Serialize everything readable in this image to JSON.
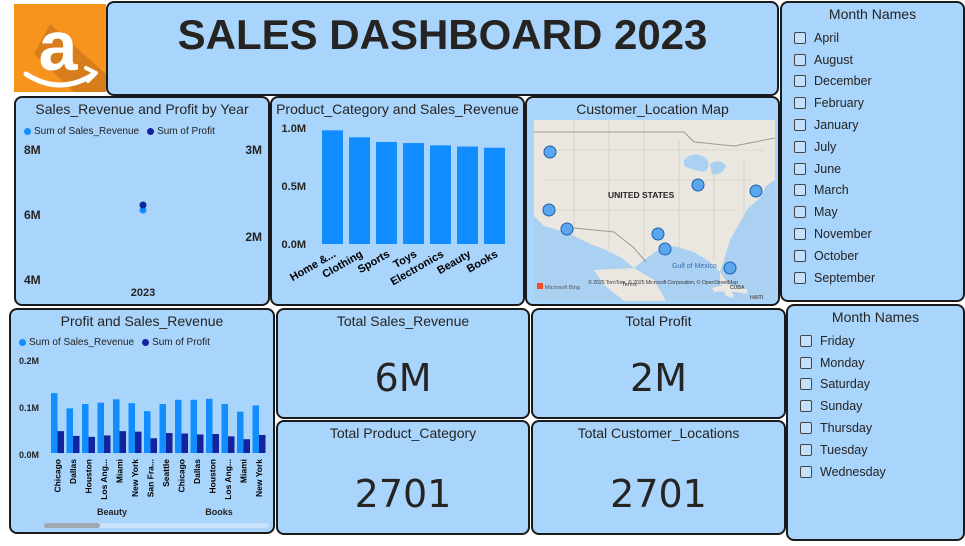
{
  "header": {
    "title": "SALES DASHBOARD 2023",
    "logo_icon": "amazon-logo-icon"
  },
  "colors": {
    "panel_bg": "#a9d4fb",
    "sales_revenue": "#118dff",
    "profit": "#12239e",
    "logo_bg": "#f7941d"
  },
  "year_chart": {
    "title": "Sales_Revenue and Profit by Year",
    "legend": [
      "Sum of Sales_Revenue",
      "Sum of Profit"
    ],
    "left_ticks": [
      "8M",
      "6M",
      "4M"
    ],
    "right_ticks": [
      "3M",
      "2M"
    ],
    "x_label": "2023"
  },
  "category_chart": {
    "title": "Product_Category and Sales_Revenue",
    "y_ticks": [
      "1.0M",
      "0.5M",
      "0.0M"
    ]
  },
  "map": {
    "title": "Customer_Location Map",
    "label_country": "UNITED STATES",
    "label_gulf": "Gulf of Mexico",
    "label_cuba": "CUBA",
    "label_haiti": "HAITI",
    "brand": "Microsoft Bing",
    "copyright": "© 2025 TomTom, © 2025 Microsoft Corporation, © OpenStreetMap",
    "terms": "Terms"
  },
  "city_chart": {
    "title": "Profit and Sales_Revenue",
    "legend": [
      "Sum of Sales_Revenue",
      "Sum of Profit"
    ],
    "y_ticks": [
      "0.2M",
      "0.1M",
      "0.0M"
    ],
    "groups": [
      "Beauty",
      "Books"
    ]
  },
  "kpis": {
    "sales_title": "Total Sales_Revenue",
    "sales_value": "6M",
    "profit_title": "Total Profit",
    "profit_value": "2M",
    "category_title": "Total Product_Category",
    "category_value": "2701",
    "locations_title": "Total Customer_Locations",
    "locations_value": "2701"
  },
  "month_slicer": {
    "title": "Month Names",
    "items": [
      "April",
      "August",
      "December",
      "February",
      "January",
      "July",
      "June",
      "March",
      "May",
      "November",
      "October",
      "September"
    ]
  },
  "day_slicer": {
    "title": "Month Names",
    "items": [
      "Friday",
      "Monday",
      "Saturday",
      "Sunday",
      "Thursday",
      "Tuesday",
      "Wednesday"
    ]
  },
  "chart_data": [
    {
      "type": "scatter",
      "title": "Sales_Revenue and Profit by Year",
      "x": [
        "2023"
      ],
      "series": [
        {
          "name": "Sum of Sales_Revenue",
          "values": [
            6.2
          ],
          "axis": "left",
          "unit": "M"
        },
        {
          "name": "Sum of Profit",
          "values": [
            2.3
          ],
          "axis": "right",
          "unit": "M"
        }
      ],
      "ylim_left": [
        4,
        8
      ],
      "ylim_right": [
        1,
        3
      ]
    },
    {
      "type": "bar",
      "title": "Product_Category and Sales_Revenue",
      "categories": [
        "Home &...",
        "Clothing",
        "Sports",
        "Toys",
        "Electronics",
        "Beauty",
        "Books"
      ],
      "values": [
        0.98,
        0.92,
        0.88,
        0.87,
        0.85,
        0.84,
        0.83
      ],
      "ylim": [
        0,
        1.0
      ],
      "unit": "M"
    },
    {
      "type": "bar",
      "title": "Profit and Sales_Revenue",
      "categories": [
        "Chicago",
        "Dallas",
        "Houston",
        "Los Ang...",
        "Miami",
        "New York",
        "San Fra...",
        "Seattle",
        "Chicago",
        "Dallas",
        "Houston",
        "Los Ang...",
        "Miami",
        "New York"
      ],
      "series": [
        {
          "name": "Sum of Sales_Revenue",
          "values": [
            0.126,
            0.094,
            0.103,
            0.106,
            0.113,
            0.105,
            0.088,
            0.103,
            0.112,
            0.112,
            0.114,
            0.103,
            0.087,
            0.1
          ]
        },
        {
          "name": "Sum of Profit",
          "values": [
            0.046,
            0.036,
            0.034,
            0.037,
            0.046,
            0.045,
            0.031,
            0.042,
            0.041,
            0.039,
            0.04,
            0.035,
            0.029,
            0.038
          ]
        }
      ],
      "ylim": [
        0,
        0.2
      ],
      "unit": "M"
    }
  ]
}
